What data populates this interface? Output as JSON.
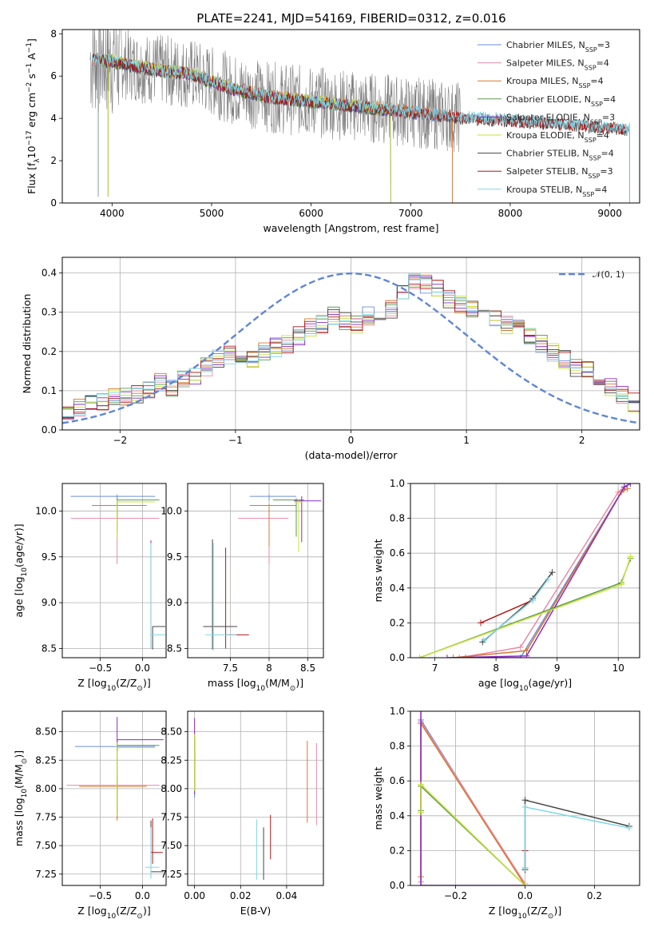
{
  "figure_title": "PLATE=2241, MJD=54169, FIBERID=0312, z=0.016",
  "colors": {
    "Chabrier MILES": "#6a8fd8",
    "Salpeter MILES": "#e88aa8",
    "Kroupa MILES": "#d9782a",
    "Chabrier ELODIE": "#5a9a4a",
    "Salpeter ELODIE": "#8a2bc2",
    "Kroupa ELODIE": "#c8e23a",
    "Chabrier STELIB": "#444444",
    "Salpeter STELIB": "#b01818",
    "Kroupa STELIB": "#7fd8e8",
    "data": "#808080",
    "normal": "#5f86d6"
  },
  "chart_data": [
    {
      "id": "spectrum",
      "type": "line",
      "title": "PLATE=2241, MJD=54169, FIBERID=0312, z=0.016",
      "xlabel": "wavelength [Angstrom, rest frame]",
      "ylabel": "Flux [f$_\\lambda$10$^{-17}$ erg cm$^{-2}$ s$^{-1}$ A$^{-1}$]",
      "xlim": [
        3500,
        9300
      ],
      "ylim": [
        0,
        8.2
      ],
      "xticks": [
        4000,
        5000,
        6000,
        7000,
        8000,
        9000
      ],
      "yticks": [
        0,
        2,
        4,
        6,
        8
      ],
      "legend_position": "top-right",
      "legend": [
        {
          "name": "Chabrier MILES",
          "main": "Chabrier MILES, N",
          "sub": "SSP",
          "tail": "=3"
        },
        {
          "name": "Salpeter MILES",
          "main": "Salpeter MILES, N",
          "sub": "SSP",
          "tail": "=4"
        },
        {
          "name": "Kroupa MILES",
          "main": "Kroupa MILES, N",
          "sub": "SSP",
          "tail": "=4"
        },
        {
          "name": "Chabrier ELODIE",
          "main": "Chabrier ELODIE, N",
          "sub": "SSP",
          "tail": "=4"
        },
        {
          "name": "Salpeter ELODIE",
          "main": "Salpeter ELODIE, N",
          "sub": "SSP",
          "tail": "=3"
        },
        {
          "name": "Kroupa ELODIE",
          "main": "Kroupa ELODIE, N",
          "sub": "SSP",
          "tail": "=4"
        },
        {
          "name": "Chabrier STELIB",
          "main": "Chabrier STELIB, N",
          "sub": "SSP",
          "tail": "=4"
        },
        {
          "name": "Salpeter STELIB",
          "main": "Salpeter STELIB, N",
          "sub": "SSP",
          "tail": "=3"
        },
        {
          "name": "Kroupa STELIB",
          "main": "Kroupa STELIB, N",
          "sub": "SSP",
          "tail": "=4"
        }
      ],
      "model_coverage": {
        "MILES": [
          3800,
          7420
        ],
        "ELODIE": [
          3900,
          6800
        ],
        "STELIB": [
          3800,
          9200
        ]
      },
      "continuum": {
        "x": [
          3800,
          4000,
          4300,
          4800,
          5200,
          5600,
          6000,
          6500,
          7000,
          7500,
          8000,
          8500,
          9000,
          9200
        ],
        "y": [
          6.8,
          6.7,
          6.4,
          6.1,
          5.4,
          5.0,
          4.8,
          4.55,
          4.3,
          4.05,
          3.9,
          3.75,
          3.55,
          3.45
        ]
      }
    },
    {
      "id": "residuals",
      "type": "histogram",
      "xlabel": "(data-model)/error",
      "ylabel": "Normed distribution",
      "xlim": [
        -2.5,
        2.5
      ],
      "ylim": [
        0,
        0.44
      ],
      "xticks": [
        -2,
        -1,
        0,
        1,
        2
      ],
      "yticks": [
        0.0,
        0.1,
        0.2,
        0.3,
        0.4
      ],
      "grid": true,
      "legend_position": "top-right",
      "bin_width": 0.1,
      "bin_start": -2.5,
      "reference_curve": {
        "name": "N(0,1)",
        "label": "𝒩(0, 1)",
        "mean": 0,
        "sigma": 1
      },
      "series_approx": [
        0.04,
        0.06,
        0.065,
        0.075,
        0.08,
        0.085,
        0.09,
        0.1,
        0.12,
        0.11,
        0.13,
        0.14,
        0.16,
        0.18,
        0.19,
        0.17,
        0.18,
        0.2,
        0.21,
        0.22,
        0.24,
        0.26,
        0.27,
        0.29,
        0.28,
        0.27,
        0.29,
        0.3,
        0.31,
        0.35,
        0.38,
        0.37,
        0.36,
        0.33,
        0.32,
        0.31,
        0.3,
        0.29,
        0.27,
        0.26,
        0.24,
        0.22,
        0.2,
        0.18,
        0.16,
        0.15,
        0.13,
        0.11,
        0.09,
        0.07
      ]
    },
    {
      "id": "age-vs-Z",
      "type": "errorbar",
      "xlabel": "Z [log$_{10}$(Z/Z$_\\odot$)]",
      "ylabel": "age  [log$_{10}$(age/yr)]",
      "xlim": [
        -0.95,
        0.28
      ],
      "ylim": [
        8.4,
        10.3
      ],
      "xticks": [
        -0.5,
        0.0
      ],
      "yticks": [
        8.5,
        9.0,
        9.5,
        10.0
      ],
      "grid": true
    },
    {
      "id": "age-vs-mass",
      "type": "errorbar",
      "xlabel": "mass [log$_{10}$(M/M$_\\odot$)]",
      "ylabel": "",
      "xlim": [
        6.95,
        8.7
      ],
      "ylim": [
        8.4,
        10.3
      ],
      "xticks": [
        7.5,
        8.0,
        8.5
      ],
      "yticks": [
        8.5,
        9.0,
        9.5,
        10.0
      ],
      "grid": true
    },
    {
      "id": "mass-weight-vs-age",
      "type": "line",
      "xlabel": "age  [log$_{10}$(age/yr)]",
      "ylabel": "mass weight",
      "xlim": [
        6.6,
        10.35
      ],
      "ylim": [
        0,
        1.0
      ],
      "xticks": [
        7,
        8,
        9,
        10
      ],
      "yticks": [
        0.0,
        0.2,
        0.4,
        0.6,
        0.8,
        1.0
      ],
      "grid": true
    },
    {
      "id": "mass-vs-Z",
      "type": "errorbar",
      "xlabel": "Z [log$_{10}$(Z/Z$_\\odot$)]",
      "ylabel": "mass [log$_{10}$(M/M$_\\odot$)]",
      "xlim": [
        -0.95,
        0.28
      ],
      "ylim": [
        7.15,
        8.68
      ],
      "xticks": [
        -0.5,
        0.0
      ],
      "yticks": [
        7.25,
        7.5,
        7.75,
        8.0,
        8.25,
        8.5
      ],
      "grid": true
    },
    {
      "id": "mass-vs-EBV",
      "type": "errorbar",
      "xlabel": "E(B-V)",
      "ylabel": "",
      "xlim": [
        -0.003,
        0.056
      ],
      "ylim": [
        7.15,
        8.68
      ],
      "xticks": [
        0.0,
        0.02,
        0.04
      ],
      "yticks": [
        7.25,
        7.5,
        7.75,
        8.0,
        8.25,
        8.5
      ],
      "grid": true
    },
    {
      "id": "mass-weight-vs-Z",
      "type": "line",
      "xlabel": "Z [log$_{10}$(Z/Z$_\\odot$)]",
      "ylabel": "mass weight",
      "xlim": [
        -0.33,
        0.33
      ],
      "ylim": [
        0,
        1.0
      ],
      "xticks": [
        -0.2,
        0.0,
        0.2
      ],
      "yticks": [
        0.0,
        0.2,
        0.4,
        0.6,
        0.8,
        1.0
      ],
      "grid": true
    }
  ]
}
